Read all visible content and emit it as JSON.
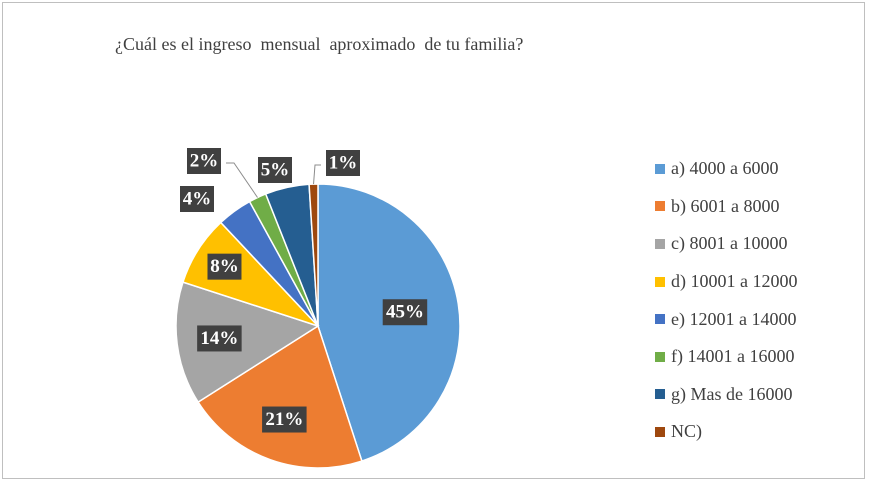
{
  "chart_data": {
    "type": "pie",
    "title": "¿Cuál es el ingreso  mensual  aproximado  de tu familia?",
    "categories": [
      "a) 4000 a 6000",
      "b) 6001 a 8000",
      "c) 8001 a 10000",
      "d) 10001 a 12000",
      "e) 12001 a 14000",
      "f) 14001 a 16000",
      "g) Mas de 16000",
      "NC)"
    ],
    "values": [
      45,
      21,
      14,
      8,
      4,
      2,
      5,
      1
    ],
    "data_labels": [
      "45%",
      "21%",
      "14%",
      "8%",
      "4%",
      "2%",
      "5%",
      "1%"
    ],
    "colors": [
      "#5b9bd5",
      "#ed7d31",
      "#a5a5a5",
      "#ffc000",
      "#4472c4",
      "#70ad47",
      "#255e91",
      "#9e480e"
    ],
    "legend_position": "right"
  }
}
